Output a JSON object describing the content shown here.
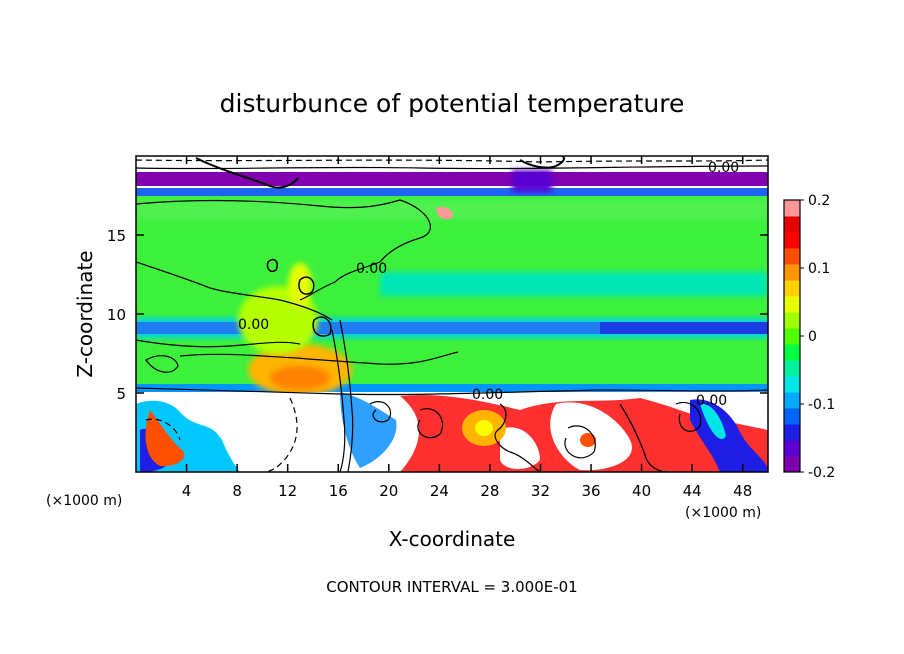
{
  "chart_data": {
    "type": "heatmap",
    "title": "disturbunce of potential temperature",
    "xlabel": "X-coordinate",
    "ylabel": "Z-coordinate",
    "x_unit_label": "(×1000 m)",
    "x_unit_label_right": "(×1000 m)",
    "footer": "CONTOUR INTERVAL = 3.000E-01",
    "xlim": [
      0,
      50
    ],
    "ylim": [
      0,
      20
    ],
    "x_ticks": [
      4,
      8,
      12,
      16,
      20,
      24,
      28,
      32,
      36,
      40,
      44,
      48
    ],
    "y_ticks": [
      5,
      10,
      15
    ],
    "colorbar": {
      "min": -0.2,
      "max": 0.2,
      "tick_labels": [
        "0.2",
        "0.1",
        "0",
        "-0.1",
        "-0.2"
      ],
      "tick_values": [
        0.2,
        0.1,
        0,
        -0.1,
        -0.2
      ],
      "colors": [
        "#8000b0",
        "#5a00d0",
        "#1e1ee6",
        "#0064ff",
        "#00aaff",
        "#00e6e6",
        "#00f0a0",
        "#00ff40",
        "#50ff00",
        "#a0ff00",
        "#e6ff00",
        "#ffd200",
        "#ff9600",
        "#ff5000",
        "#ff0000",
        "#e60000",
        "#ff9999"
      ]
    },
    "contour_labels": [
      "0.00",
      "0.00",
      "0.00",
      "0.00",
      "0.00"
    ],
    "contour_interval": 0.3,
    "background_field": "~0.0 to +0.03 (green) between z=5 and z=17",
    "grid": false
  },
  "colors": {
    "green_field": "#3cf03c",
    "warm_core": "#ff9600",
    "cool_band": "#1e64f0",
    "tropopause": "#8000b0",
    "hot": "#ff2020"
  }
}
